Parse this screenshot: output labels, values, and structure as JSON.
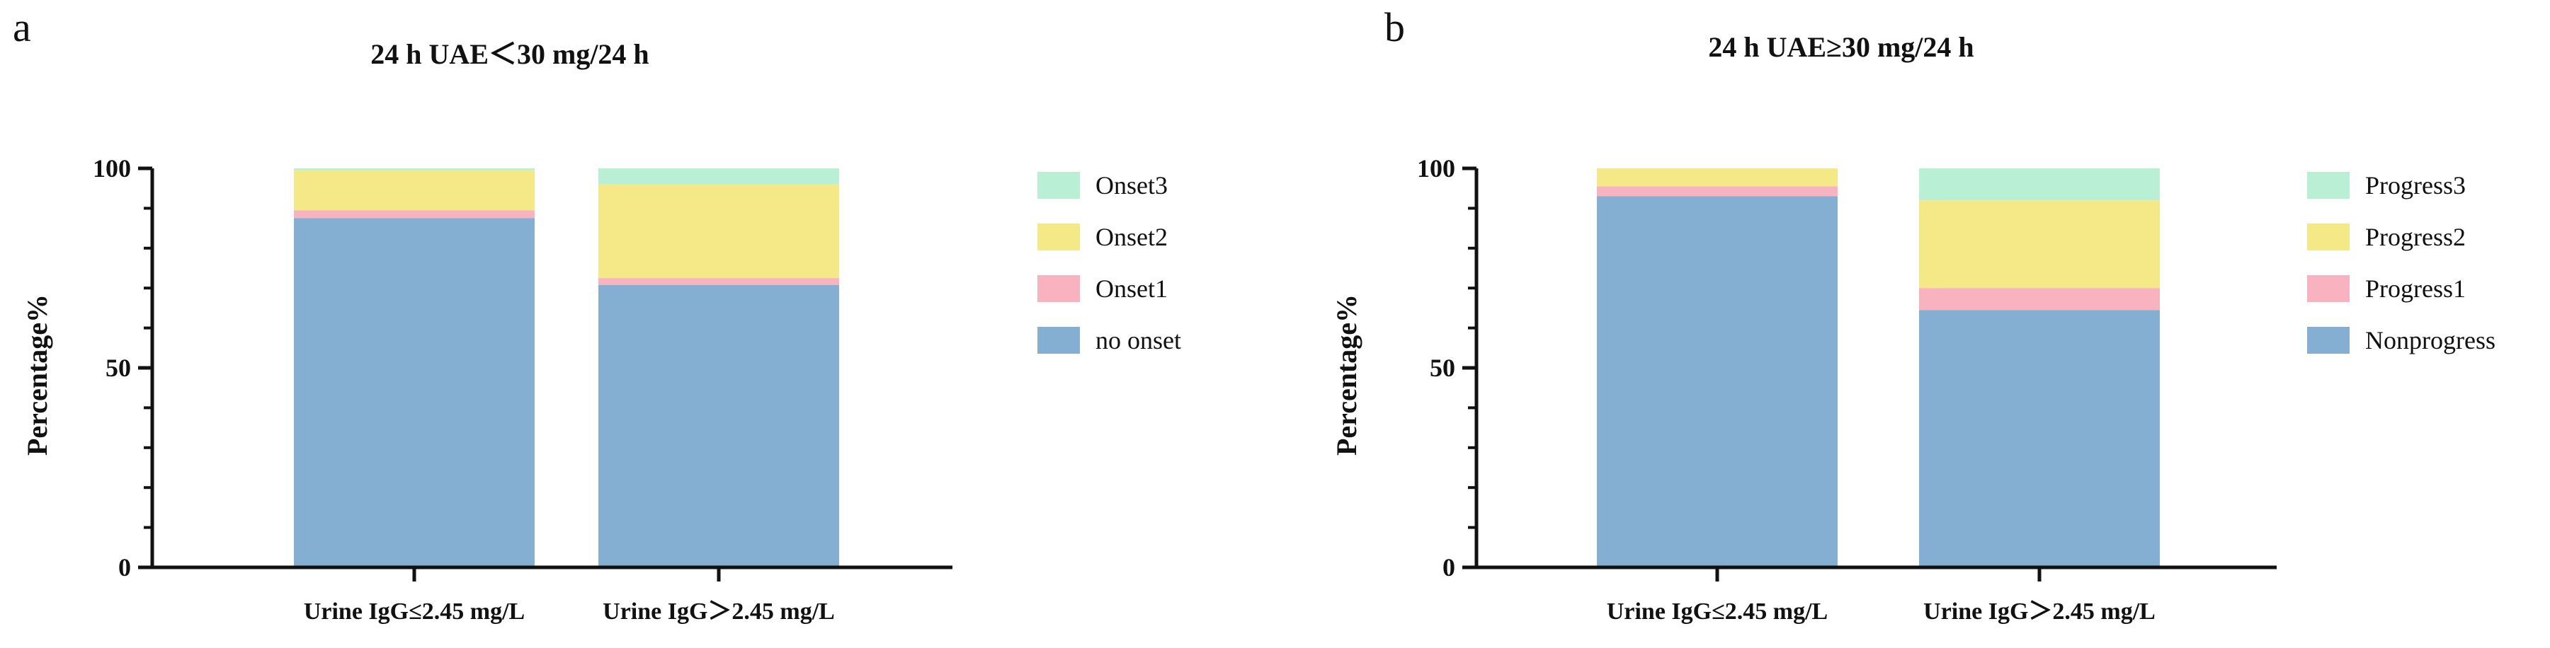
{
  "chart_data": [
    {
      "type": "bar",
      "stacked": true,
      "panel_letter": "a",
      "title": "24 h UAE＜30 mg/24 h",
      "xlabel": "",
      "ylabel": "Percentage%",
      "ylim": [
        0,
        100
      ],
      "yticks": [
        0,
        50,
        100
      ],
      "ytick_labels": [
        "0",
        "50",
        "100"
      ],
      "categories": [
        "Urine IgG≤2.45 mg/L",
        "Urine IgG＞2.45 mg/L"
      ],
      "series": [
        {
          "name": "no onset",
          "values": [
            87.5,
            70.8
          ],
          "color": "#85aed3"
        },
        {
          "name": "Onset1",
          "values": [
            2.0,
            1.7
          ],
          "color": "#f9b2bf"
        },
        {
          "name": "Onset2",
          "values": [
            10.0,
            23.5
          ],
          "color": "#f5e886"
        },
        {
          "name": "Onset3",
          "values": [
            0.5,
            4.0
          ],
          "color": "#b9f0d5"
        }
      ],
      "legend": [
        "Onset3",
        "Onset2",
        "Onset1",
        "no onset"
      ],
      "legend_position": "right"
    },
    {
      "type": "bar",
      "stacked": true,
      "panel_letter": "b",
      "title": "24 h UAE≥30 mg/24 h",
      "xlabel": "",
      "ylabel": "Percentage%",
      "ylim": [
        0,
        100
      ],
      "yticks": [
        0,
        50,
        100
      ],
      "ytick_labels": [
        "0",
        "50",
        "100"
      ],
      "categories": [
        "Urine IgG≤2.45 mg/L",
        "Urine IgG＞2.45 mg/L"
      ],
      "series": [
        {
          "name": "Nonprogress",
          "values": [
            93.0,
            64.5
          ],
          "color": "#85aed3"
        },
        {
          "name": "Progress1",
          "values": [
            2.5,
            5.5
          ],
          "color": "#f9b2bf"
        },
        {
          "name": "Progress2",
          "values": [
            4.5,
            22.0
          ],
          "color": "#f5e886"
        },
        {
          "name": "Progress3",
          "values": [
            0.0,
            8.0
          ],
          "color": "#b9f0d5"
        }
      ],
      "legend": [
        "Progress3",
        "Progress2",
        "Progress1",
        "Nonprogress"
      ],
      "legend_position": "right"
    }
  ]
}
